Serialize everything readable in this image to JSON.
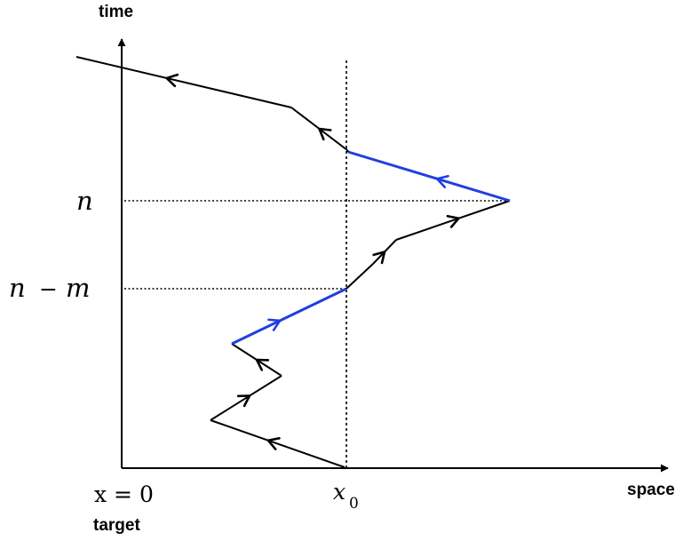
{
  "axes": {
    "time_label": "time",
    "space_label": "space",
    "target_label": "target",
    "origin_label": "x = 0",
    "x0_label": "x",
    "x0_sub": "0"
  },
  "levels": {
    "n_label": "n",
    "n_minus_m_label_left": "n",
    "n_minus_m_label_op": "−",
    "n_minus_m_label_right": "m"
  },
  "colors": {
    "path": "#000000",
    "highlight": "#1f3fe0",
    "axis": "#000000"
  }
}
